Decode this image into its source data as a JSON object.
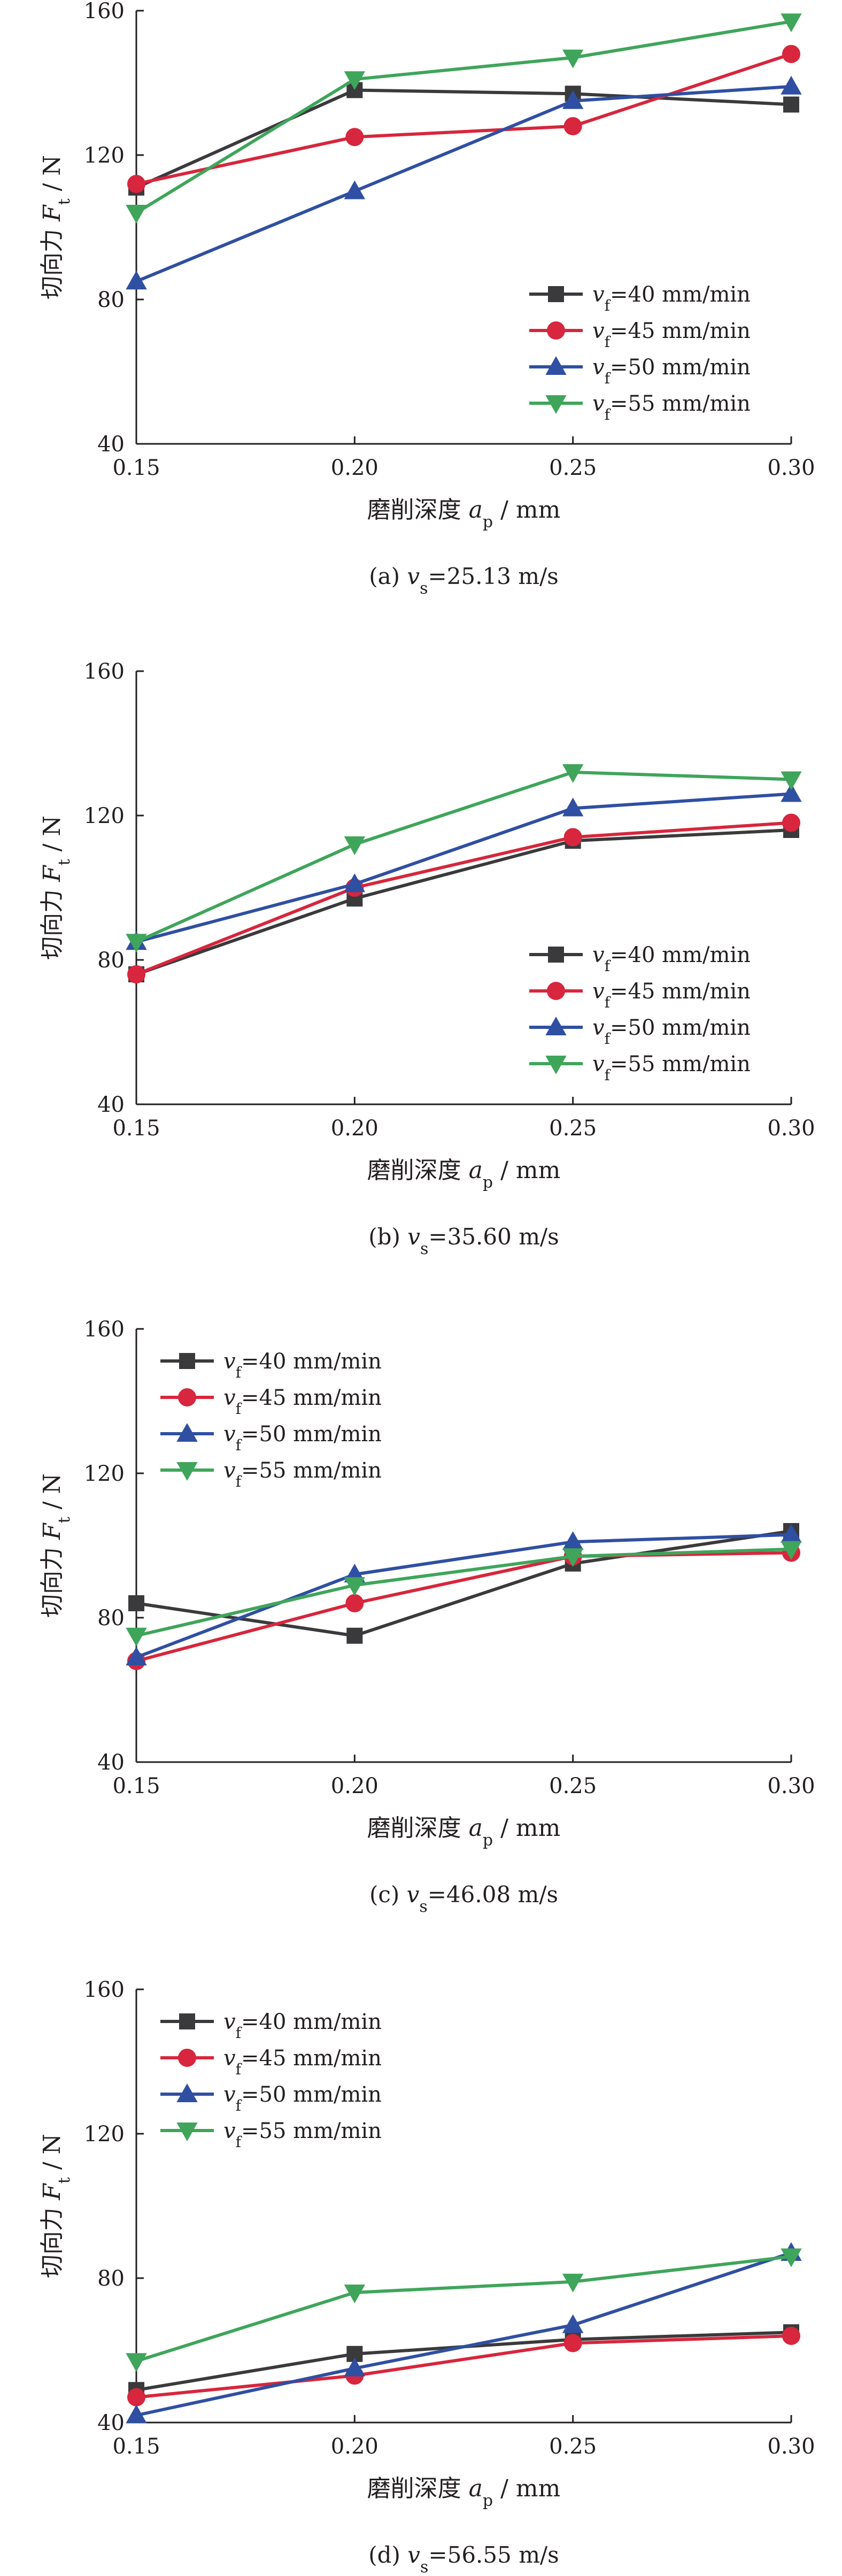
{
  "charts": [
    {
      "caption": {
        "pre": "(a) ",
        "var": "v",
        "sub": "s",
        "post": "=25.13 m/s"
      },
      "legend_position": "bottom-right"
    },
    {
      "caption": {
        "pre": "(b) ",
        "var": "v",
        "sub": "s",
        "post": "=35.60 m/s"
      },
      "legend_position": "bottom-right"
    },
    {
      "caption": {
        "pre": "(c) ",
        "var": "v",
        "sub": "s",
        "post": "=46.08 m/s"
      },
      "legend_position": "top-left"
    },
    {
      "caption": {
        "pre": "(d) ",
        "var": "v",
        "sub": "s",
        "post": "=56.55 m/s"
      },
      "legend_position": "top-left"
    }
  ],
  "axes": {
    "ylabel": {
      "pre": "切向力 ",
      "var": "F",
      "sub": "t",
      "post": " / N"
    },
    "xlabel": {
      "pre": "磨削深度 ",
      "var": "a",
      "sub": "p",
      "post": " / mm"
    },
    "xticks": [
      "0.15",
      "0.20",
      "0.25",
      "0.30"
    ],
    "yticks": [
      "40",
      "80",
      "120",
      "160"
    ]
  },
  "legend": [
    {
      "var": "v",
      "sub": "f",
      "text": "=40 mm/min"
    },
    {
      "var": "v",
      "sub": "f",
      "text": "=45 mm/min"
    },
    {
      "var": "v",
      "sub": "f",
      "text": "=50 mm/min"
    },
    {
      "var": "v",
      "sub": "f",
      "text": "=55 mm/min"
    }
  ],
  "colors": [
    "#3a3a3c",
    "#d7263d",
    "#2f4fa2",
    "#3fa55b"
  ],
  "markers": [
    "square",
    "circle",
    "triangle-up",
    "triangle-down"
  ],
  "chart_data": [
    {
      "type": "line",
      "x": [
        0.15,
        0.2,
        0.25,
        0.3
      ],
      "xlim": [
        0.15,
        0.3
      ],
      "ylim": [
        40,
        160
      ],
      "grid": false,
      "series": [
        {
          "name": "vf=40 mm/min",
          "values": [
            111,
            138,
            137,
            134
          ]
        },
        {
          "name": "vf=45 mm/min",
          "values": [
            112,
            125,
            128,
            148
          ]
        },
        {
          "name": "vf=50 mm/min",
          "values": [
            85,
            110,
            135,
            139
          ]
        },
        {
          "name": "vf=55 mm/min",
          "values": [
            104,
            141,
            147,
            157
          ]
        }
      ]
    },
    {
      "type": "line",
      "x": [
        0.15,
        0.2,
        0.25,
        0.3
      ],
      "xlim": [
        0.15,
        0.3
      ],
      "ylim": [
        40,
        160
      ],
      "grid": false,
      "series": [
        {
          "name": "vf=40 mm/min",
          "values": [
            76,
            97,
            113,
            116
          ]
        },
        {
          "name": "vf=45 mm/min",
          "values": [
            76,
            100,
            114,
            118
          ]
        },
        {
          "name": "vf=50 mm/min",
          "values": [
            85,
            101,
            122,
            126
          ]
        },
        {
          "name": "vf=55 mm/min",
          "values": [
            85,
            112,
            132,
            130
          ]
        }
      ]
    },
    {
      "type": "line",
      "x": [
        0.15,
        0.2,
        0.25,
        0.3
      ],
      "xlim": [
        0.15,
        0.3
      ],
      "ylim": [
        40,
        160
      ],
      "grid": false,
      "series": [
        {
          "name": "vf=40 mm/min",
          "values": [
            84,
            75,
            95,
            104
          ]
        },
        {
          "name": "vf=45 mm/min",
          "values": [
            68,
            84,
            97,
            98
          ]
        },
        {
          "name": "vf=50 mm/min",
          "values": [
            69,
            92,
            101,
            103
          ]
        },
        {
          "name": "vf=55 mm/min",
          "values": [
            75,
            89,
            97,
            99
          ]
        }
      ]
    },
    {
      "type": "line",
      "x": [
        0.15,
        0.2,
        0.25,
        0.3
      ],
      "xlim": [
        0.15,
        0.3
      ],
      "ylim": [
        40,
        160
      ],
      "grid": false,
      "series": [
        {
          "name": "vf=40 mm/min",
          "values": [
            49,
            59,
            63,
            65
          ]
        },
        {
          "name": "vf=45 mm/min",
          "values": [
            47,
            53,
            62,
            64
          ]
        },
        {
          "name": "vf=50 mm/min",
          "values": [
            42,
            55,
            67,
            87
          ]
        },
        {
          "name": "vf=55 mm/min",
          "values": [
            57,
            76,
            79,
            86
          ]
        }
      ]
    }
  ]
}
